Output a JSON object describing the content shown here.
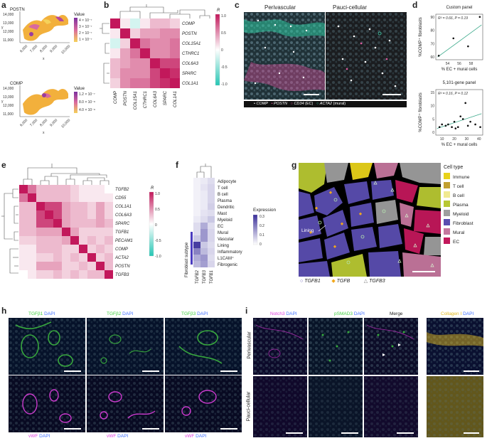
{
  "panels": {
    "a": "a",
    "b": "b",
    "c": "c",
    "d": "d",
    "e": "e",
    "f": "f",
    "g": "g",
    "h": "h",
    "i": "i"
  },
  "colors": {
    "heat_high": "#c2185b",
    "heat_mid": "#ffffff",
    "heat_low": "#26c6b4",
    "expr_high": "#3a2f9a",
    "expr_low": "#ffffff",
    "immune": "#e8d21a",
    "t_cell": "#c2a030",
    "b_cell": "#f1ea90",
    "plasma": "#b8c832",
    "myeloid": "#9e9e9e",
    "fibroblast": "#5a4db0",
    "mural": "#c4779e",
    "ec": "#c2185b"
  },
  "panel_a": {
    "plots": [
      {
        "title": "POSTN",
        "legend_title": "Value",
        "legend_values": [
          "4 × 10⁻⁷",
          "3 × 10⁻⁷",
          "2 × 10⁻⁷",
          "1 × 10⁻⁷"
        ]
      },
      {
        "title": "COMP",
        "legend_title": "Value",
        "legend_values": [
          "1.2 × 10⁻⁷",
          "8.0 × 10⁻⁸",
          "4.0 × 10⁻⁸"
        ]
      }
    ],
    "y_ticks": [
      "14,000",
      "13,000",
      "12,000",
      "11,000"
    ],
    "x_ticks": [
      "6,000",
      "7,000",
      "8,000",
      "9,000",
      "10,000"
    ],
    "xlabel": "x",
    "ylabel": "y"
  },
  "panel_b": {
    "genes": [
      "COMP",
      "POSTN",
      "COL15A1",
      "CTHRC1",
      "COL6A3",
      "SPARC",
      "COL1A1"
    ],
    "matrix": [
      [
        1.0,
        0.1,
        -0.2,
        0.1,
        0.3,
        0.3,
        0.2
      ],
      [
        0.1,
        1.0,
        0.2,
        0.4,
        0.4,
        0.5,
        0.5
      ],
      [
        -0.2,
        0.2,
        1.0,
        0.6,
        0.5,
        0.5,
        0.6
      ],
      [
        0.1,
        0.4,
        0.6,
        1.0,
        0.5,
        0.5,
        0.6
      ],
      [
        0.3,
        0.4,
        0.5,
        0.5,
        1.0,
        0.8,
        0.8
      ],
      [
        0.3,
        0.5,
        0.5,
        0.5,
        0.8,
        1.0,
        0.9
      ],
      [
        0.2,
        0.5,
        0.6,
        0.6,
        0.8,
        0.9,
        1.0
      ]
    ],
    "legend_title": "R",
    "legend_ticks": [
      "1.0",
      "0.5",
      "0",
      "-0.5",
      "-1.0"
    ]
  },
  "panel_c": {
    "titles": [
      "Perivascular",
      "Pauci-cellular"
    ],
    "legend": [
      {
        "sym": "•",
        "name": "COMP",
        "color": "#ffffff"
      },
      {
        "sym": "•",
        "name": "POSTN",
        "color": "#e05aa0"
      },
      {
        "sym": "○",
        "name": "CD34",
        "suffix": " (EC)",
        "color": "#e05aa0"
      },
      {
        "sym": "○",
        "name": "ACTA2",
        "suffix": " (mural)",
        "color": "#3fd4b0"
      }
    ]
  },
  "panel_d": {
    "chart_data": [
      {
        "type": "scatter",
        "title": "Custom panel",
        "stat": "R² = 0.66, P = 0.19",
        "xlabel": "% EC + mural cells",
        "ylabel": "%COMP⁺ fibroblasts",
        "x_ticks": [
          "54",
          "56",
          "58"
        ],
        "y_ticks": [
          "60",
          "70",
          "80",
          "90"
        ],
        "xlim": [
          52,
          60
        ],
        "ylim": [
          58,
          92
        ],
        "points": [
          [
            52.5,
            61
          ],
          [
            55,
            74
          ],
          [
            57.5,
            68
          ],
          [
            59.5,
            90
          ]
        ],
        "fit": [
          [
            52.3,
            60
          ],
          [
            59.8,
            84
          ]
        ]
      },
      {
        "type": "scatter",
        "title": "5,101-gene panel",
        "stat": "R² = 0.16, P = 0.12",
        "xlabel": "% EC + mural cells",
        "ylabel": "%COMP⁺ fibroblasts",
        "x_ticks": [
          "10",
          "20",
          "30",
          "40"
        ],
        "y_ticks": [
          "0",
          "5",
          "10",
          "15"
        ],
        "xlim": [
          5,
          43
        ],
        "ylim": [
          -1,
          16
        ],
        "points": [
          [
            8,
            2
          ],
          [
            10,
            3
          ],
          [
            13,
            2.5
          ],
          [
            15,
            3
          ],
          [
            18,
            2
          ],
          [
            20,
            4
          ],
          [
            21,
            1.5
          ],
          [
            23,
            2
          ],
          [
            25,
            6
          ],
          [
            27,
            5
          ],
          [
            29,
            11
          ],
          [
            31,
            2.5
          ],
          [
            33,
            4
          ],
          [
            37,
            3
          ],
          [
            41,
            2
          ]
        ],
        "fit": [
          [
            6,
            1.5
          ],
          [
            42,
            7
          ]
        ]
      }
    ]
  },
  "panel_e": {
    "genes_rows": [
      "TGFB2",
      "CD55",
      "COL1A1",
      "COL6A3",
      "SPARC",
      "TGFB1",
      "PECAM1",
      "COMP",
      "ACTA2",
      "POSTN",
      "TGFB3"
    ],
    "genes_cols": [
      "TGFB2",
      "CD55",
      "COL1A1",
      "COL6A3",
      "SPARC",
      "TGFB1",
      "PECAM1",
      "COMP",
      "ACTA2",
      "POSTN",
      "TGFB3"
    ],
    "matrix": [
      [
        1.0,
        0.6,
        0.3,
        0.3,
        0.3,
        0.3,
        0.2,
        0.1,
        0.1,
        0.1,
        0.0
      ],
      [
        0.6,
        1.0,
        0.3,
        0.3,
        0.3,
        0.3,
        0.2,
        0.1,
        0.1,
        0.1,
        0.1
      ],
      [
        0.3,
        0.3,
        1.0,
        0.8,
        0.8,
        0.4,
        0.3,
        0.3,
        0.2,
        0.4,
        0.2
      ],
      [
        0.3,
        0.3,
        0.8,
        1.0,
        0.8,
        0.4,
        0.3,
        0.3,
        0.2,
        0.4,
        0.2
      ],
      [
        0.3,
        0.3,
        0.8,
        0.8,
        1.0,
        0.4,
        0.3,
        0.3,
        0.3,
        0.4,
        0.3
      ],
      [
        0.3,
        0.3,
        0.4,
        0.4,
        0.4,
        1.0,
        0.4,
        0.2,
        0.2,
        0.2,
        0.2
      ],
      [
        0.2,
        0.2,
        0.3,
        0.3,
        0.3,
        0.4,
        1.0,
        0.2,
        0.3,
        0.2,
        0.3
      ],
      [
        0.1,
        0.1,
        0.3,
        0.3,
        0.3,
        0.2,
        0.2,
        1.0,
        0.2,
        0.3,
        0.2
      ],
      [
        0.1,
        0.1,
        0.2,
        0.2,
        0.3,
        0.2,
        0.3,
        0.2,
        1.0,
        0.2,
        0.3
      ],
      [
        0.1,
        0.1,
        0.4,
        0.4,
        0.4,
        0.2,
        0.2,
        0.3,
        0.2,
        1.0,
        0.3
      ],
      [
        0.0,
        0.1,
        0.2,
        0.2,
        0.3,
        0.2,
        0.3,
        0.2,
        0.3,
        0.3,
        1.0
      ]
    ],
    "legend_title": "R",
    "legend_ticks": [
      "1.0",
      "0.5",
      "0",
      "-0.5",
      "-1.0"
    ]
  },
  "panel_f": {
    "cell_types": [
      "Adipocyte",
      "T cell",
      "B cell",
      "Plasma",
      "Dendritic",
      "Mast",
      "Myeloid",
      "EC",
      "Mural",
      "Vascular",
      "Lining",
      "Inflammatory",
      "L1CAM⁺",
      "Fibrogenic"
    ],
    "genes": [
      "TGFB2",
      "TGFB3",
      "TGFB1"
    ],
    "matrix": [
      [
        0.02,
        0.03,
        0.05
      ],
      [
        0.02,
        0.04,
        0.06
      ],
      [
        0.02,
        0.03,
        0.06
      ],
      [
        0.02,
        0.03,
        0.06
      ],
      [
        0.02,
        0.03,
        0.07
      ],
      [
        0.02,
        0.04,
        0.05
      ],
      [
        0.03,
        0.05,
        0.08
      ],
      [
        0.05,
        0.12,
        0.05
      ],
      [
        0.05,
        0.15,
        0.06
      ],
      [
        0.08,
        0.15,
        0.06
      ],
      [
        0.28,
        0.08,
        0.05
      ],
      [
        0.18,
        0.1,
        0.06
      ],
      [
        0.12,
        0.15,
        0.05
      ],
      [
        0.1,
        0.14,
        0.06
      ]
    ],
    "group_label": "Fibroblast subtype",
    "legend_title": "Expression",
    "legend_ticks": [
      "0.3",
      "0.2",
      "0.1",
      "0"
    ]
  },
  "panel_g": {
    "annotation": "Lining",
    "legend_title": "Cell type",
    "cell_types": [
      {
        "name": "Immune",
        "color": "#e8d21a"
      },
      {
        "name": "T cell",
        "color": "#c2a030"
      },
      {
        "name": "B cell",
        "color": "#f1ea90"
      },
      {
        "name": "Plasma",
        "color": "#b8c832"
      },
      {
        "name": "Myeloid",
        "color": "#9e9e9e"
      },
      {
        "name": "Fibroblast",
        "color": "#5a4db0"
      },
      {
        "name": "Mural",
        "color": "#c4779e"
      },
      {
        "name": "EC",
        "color": "#c2185b"
      }
    ],
    "markers": [
      {
        "sym": "○",
        "name": "TGFB1"
      },
      {
        "sym": "◆",
        "name": "TGFB"
      },
      {
        "sym": "△",
        "name": "TGFB3"
      }
    ]
  },
  "panel_h": {
    "top_titles": [
      {
        "a": "TGFβ1",
        "b": " DAPI"
      },
      {
        "a": "TGFβ2",
        "b": " DAPI"
      },
      {
        "a": "TGFβ3",
        "b": " DAPI"
      }
    ],
    "bottom_titles": [
      {
        "a": "vWF",
        "b": " DAPI"
      },
      {
        "a": "vWF",
        "b": " DAPI"
      },
      {
        "a": "vWF",
        "b": " DAPI"
      }
    ]
  },
  "panel_i": {
    "titles": [
      {
        "a": "Notch3",
        "b": " DAPI",
        "color": "#e040e0"
      },
      {
        "a": "pSMAD3",
        "b": " DAPI",
        "color": "#40d040"
      },
      {
        "a": "Merge",
        "b": "",
        "color": "#222"
      },
      {
        "a": "Collagen I",
        "b": " DAPI",
        "color": "#e0b820"
      }
    ],
    "row_labels": [
      "Perivascular",
      "Pauci-cellular"
    ]
  }
}
